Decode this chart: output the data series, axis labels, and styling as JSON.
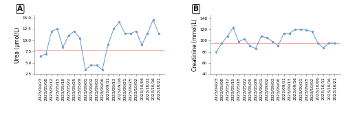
{
  "dates": [
    "2023/04/23",
    "2023/05/08",
    "2023/05/12",
    "2023/05/15",
    "2023/05/18",
    "2023/05/22",
    "2023/05/25",
    "2023/05/29",
    "2023/09/01",
    "2023/09/02",
    "2023/09/03",
    "2023/09/06",
    "2023/09/11",
    "2023/09/13",
    "2023/09/16",
    "2023/09/21",
    "2023/09/25",
    "2023/10/02",
    "2023/10/06",
    "2023/10/11",
    "2023/10/16",
    "2023/10/21"
  ],
  "urea": [
    6.5,
    7.0,
    12.0,
    12.5,
    8.5,
    11.0,
    12.0,
    10.5,
    3.5,
    4.5,
    4.5,
    3.5,
    9.0,
    12.5,
    14.0,
    11.5,
    11.5,
    12.0,
    9.0,
    11.5,
    14.5,
    11.5
  ],
  "urea_refline": 7.8,
  "urea_ylim": [
    2.5,
    15.5
  ],
  "urea_yticks": [
    2.5,
    5.0,
    7.5,
    10.0,
    12.5,
    15.0
  ],
  "urea_ylabel": "Urea (μmol/L)",
  "creatinine": [
    80,
    95,
    108,
    123,
    98,
    103,
    90,
    86,
    108,
    105,
    98,
    91,
    113,
    113,
    120,
    120,
    119,
    116,
    96,
    87,
    96,
    95
  ],
  "creatinine_refline": 95,
  "creatinine_ylim": [
    40,
    145
  ],
  "creatinine_yticks": [
    40,
    60,
    80,
    100,
    120,
    140
  ],
  "creatinine_ylabel": "Creatinine (mmol/L)",
  "line_color": "#6699cc",
  "marker_color": "#6699cc",
  "refline_color": "#ffaaaa",
  "label_A": "A",
  "label_B": "B",
  "bg_color": "#ffffff",
  "tick_fontsize": 4.2,
  "ylabel_fontsize": 5.5,
  "panel_label_fontsize": 7.5
}
